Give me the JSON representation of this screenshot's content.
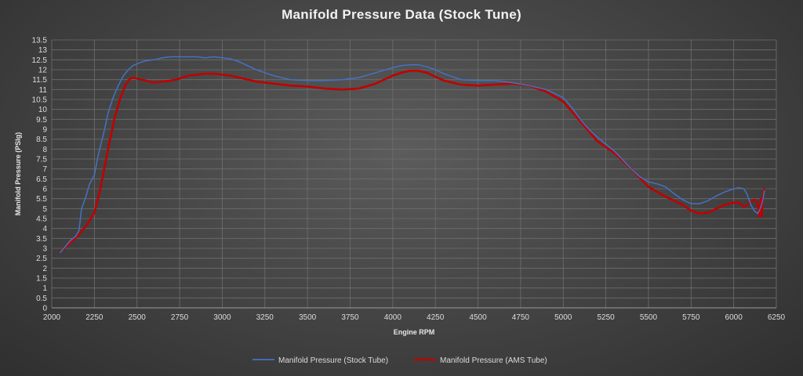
{
  "chart_data": {
    "type": "line",
    "title": "Manifold Pressure Data (Stock Tune)",
    "xlabel": "Engine RPM",
    "ylabel": "Manifold Pressure (PSIg)",
    "xlim": [
      2000,
      6250
    ],
    "ylim": [
      0,
      13.5
    ],
    "xticks": [
      2000,
      2250,
      2500,
      2750,
      3000,
      3250,
      3500,
      3750,
      4000,
      4250,
      4500,
      4750,
      5000,
      5250,
      5500,
      5750,
      6000,
      6250
    ],
    "yticks": [
      0,
      0.5,
      1,
      1.5,
      2,
      2.5,
      3,
      3.5,
      4,
      4.5,
      5,
      5.5,
      6,
      6.5,
      7,
      7.5,
      8,
      8.5,
      9,
      9.5,
      10,
      10.5,
      11,
      11.5,
      12,
      12.5,
      13,
      13.5
    ],
    "grid": true,
    "legend_position": "bottom",
    "series": [
      {
        "name": "Manifold Pressure (Stock Tube)",
        "color": "#4472c4",
        "x": [
          2050,
          2080,
          2110,
          2140,
          2160,
          2175,
          2200,
          2220,
          2250,
          2270,
          2290,
          2310,
          2330,
          2360,
          2390,
          2420,
          2450,
          2475,
          2500,
          2550,
          2600,
          2650,
          2700,
          2750,
          2800,
          2850,
          2900,
          2950,
          3000,
          3050,
          3100,
          3150,
          3200,
          3250,
          3300,
          3400,
          3500,
          3600,
          3700,
          3800,
          3900,
          4000,
          4050,
          4100,
          4150,
          4200,
          4250,
          4300,
          4400,
          4500,
          4600,
          4700,
          4800,
          4900,
          5000,
          5050,
          5100,
          5150,
          5200,
          5300,
          5400,
          5450,
          5500,
          5550,
          5600,
          5650,
          5700,
          5750,
          5800,
          5850,
          5900,
          5950,
          6000,
          6030,
          6060,
          6080,
          6100,
          6120,
          6140,
          6150,
          6160,
          6170,
          6180
        ],
        "y": [
          2.8,
          3.1,
          3.4,
          3.6,
          3.9,
          5.0,
          5.6,
          6.2,
          6.7,
          7.6,
          8.3,
          9.0,
          9.8,
          10.6,
          11.2,
          11.7,
          12.0,
          12.2,
          12.3,
          12.45,
          12.5,
          12.6,
          12.65,
          12.65,
          12.65,
          12.65,
          12.6,
          12.65,
          12.6,
          12.55,
          12.4,
          12.2,
          12.0,
          11.85,
          11.7,
          11.5,
          11.45,
          11.45,
          11.5,
          11.6,
          11.85,
          12.1,
          12.2,
          12.25,
          12.25,
          12.15,
          12.0,
          11.8,
          11.5,
          11.45,
          11.45,
          11.35,
          11.2,
          11.0,
          10.6,
          10.1,
          9.5,
          9.0,
          8.6,
          7.9,
          7.0,
          6.6,
          6.35,
          6.25,
          6.1,
          5.75,
          5.45,
          5.25,
          5.25,
          5.4,
          5.65,
          5.85,
          6.0,
          6.05,
          6.0,
          5.7,
          5.2,
          4.9,
          4.75,
          4.9,
          5.1,
          5.4,
          5.9
        ]
      },
      {
        "name": "Manifold Pressure (AMS Tube)",
        "color": "#c00000",
        "x": [
          2050,
          2100,
          2150,
          2200,
          2250,
          2280,
          2310,
          2340,
          2370,
          2400,
          2430,
          2460,
          2480,
          2500,
          2550,
          2600,
          2650,
          2700,
          2750,
          2800,
          2850,
          2900,
          2950,
          3000,
          3050,
          3100,
          3150,
          3200,
          3300,
          3400,
          3500,
          3600,
          3700,
          3800,
          3900,
          4000,
          4050,
          4100,
          4150,
          4200,
          4250,
          4300,
          4400,
          4500,
          4600,
          4700,
          4800,
          4900,
          5000,
          5100,
          5200,
          5300,
          5400,
          5500,
          5600,
          5700,
          5750,
          5800,
          5850,
          5900,
          5950,
          6000,
          6030,
          6060,
          6080,
          6100,
          6120,
          6140,
          6150,
          6160,
          6165,
          6170,
          6175,
          6180
        ],
        "y": [
          2.85,
          3.2,
          3.6,
          4.1,
          4.8,
          5.8,
          7.1,
          8.4,
          9.6,
          10.5,
          11.2,
          11.55,
          11.6,
          11.55,
          11.45,
          11.35,
          11.4,
          11.45,
          11.55,
          11.7,
          11.75,
          11.8,
          11.8,
          11.75,
          11.7,
          11.6,
          11.5,
          11.4,
          11.3,
          11.2,
          11.15,
          11.05,
          11.0,
          11.05,
          11.3,
          11.7,
          11.85,
          11.95,
          11.95,
          11.85,
          11.65,
          11.45,
          11.25,
          11.2,
          11.25,
          11.3,
          11.2,
          10.9,
          10.4,
          9.4,
          8.4,
          7.8,
          7.0,
          6.1,
          5.6,
          5.2,
          4.9,
          4.75,
          4.8,
          5.0,
          5.2,
          5.3,
          5.3,
          5.1,
          5.2,
          5.35,
          5.45,
          5.3,
          4.6,
          5.5,
          4.6,
          5.6,
          5.8,
          6.0
        ]
      }
    ]
  }
}
